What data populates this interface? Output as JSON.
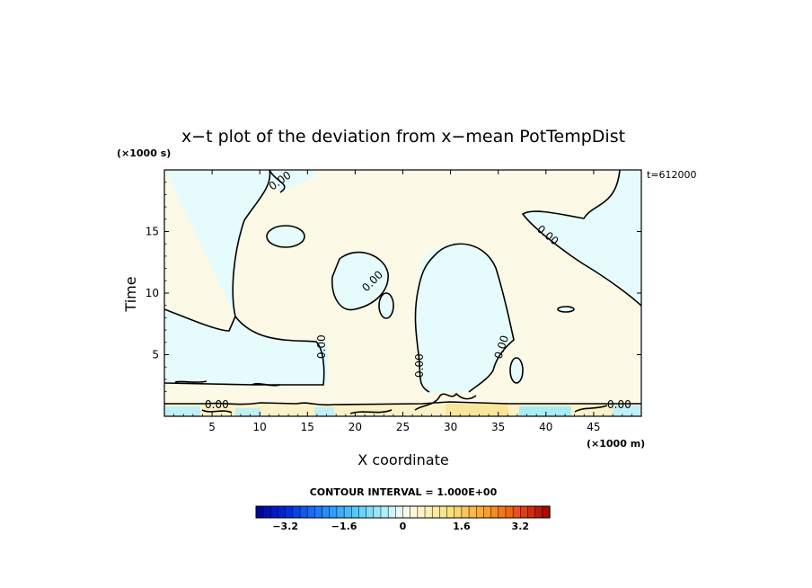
{
  "chart_data": {
    "type": "heatmap",
    "title": "x−t plot of the deviation from x−mean PotTempDist",
    "xlabel": "X coordinate",
    "ylabel": "Time",
    "x_unit": "(×1000 m)",
    "y_unit": "(×1000 s)",
    "time_stamp": "t=612000",
    "xlim": [
      0,
      50
    ],
    "ylim": [
      0,
      20
    ],
    "xticks": [
      "5",
      "10",
      "15",
      "20",
      "25",
      "30",
      "35",
      "40",
      "45"
    ],
    "yticks": [
      "5",
      "10",
      "15"
    ],
    "contour_interval": "CONTOUR INTERVAL = 1.000E+00",
    "contour_labels": [
      "0.00",
      "0.00",
      "0.00",
      "0.00",
      "0.00",
      "0.00",
      "0.00"
    ],
    "colorbar": {
      "tick_labels": [
        "−3.2",
        "−1.6",
        "0",
        "1.6",
        "3.2"
      ],
      "tick_values": [
        -3.2,
        -1.6,
        0,
        1.6,
        3.2
      ],
      "range": [
        -4,
        4
      ],
      "n_levels": 40,
      "negative_color": "#e6fcfc",
      "positive_color": "#fcfae6"
    },
    "grid": false
  }
}
